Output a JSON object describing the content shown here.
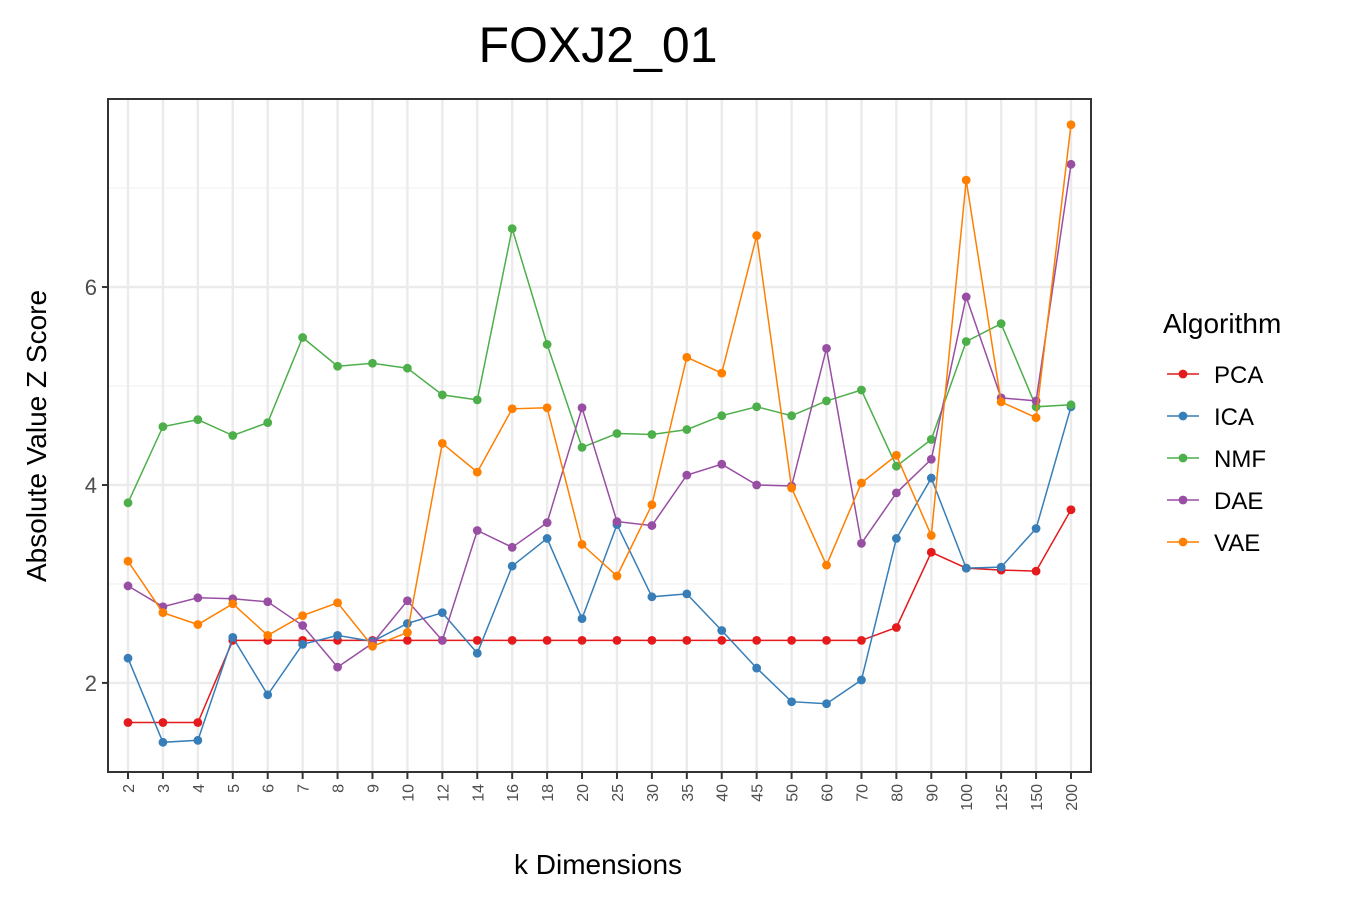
{
  "chart_data": {
    "type": "line",
    "title": "FOXJ2_01",
    "xlabel": "k Dimensions",
    "ylabel": "Absolute Value Z Score",
    "categories": [
      "2",
      "3",
      "4",
      "5",
      "6",
      "7",
      "8",
      "9",
      "10",
      "12",
      "14",
      "16",
      "18",
      "20",
      "25",
      "30",
      "35",
      "40",
      "45",
      "50",
      "60",
      "70",
      "80",
      "90",
      "100",
      "125",
      "150",
      "200"
    ],
    "yticks": [
      2,
      4,
      6
    ],
    "ylim": [
      1.1,
      7.9
    ],
    "grid": true,
    "legend": {
      "title": "Algorithm",
      "position": "right"
    },
    "series": [
      {
        "name": "PCA",
        "color": "#e41a1c",
        "values": [
          1.6,
          1.6,
          1.6,
          2.43,
          2.43,
          2.43,
          2.43,
          2.43,
          2.43,
          2.43,
          2.43,
          2.43,
          2.43,
          2.43,
          2.43,
          2.43,
          2.43,
          2.43,
          2.43,
          2.43,
          2.43,
          2.43,
          2.56,
          3.32,
          3.16,
          3.14,
          3.13,
          3.75
        ]
      },
      {
        "name": "ICA",
        "color": "#377eb8",
        "values": [
          2.25,
          1.4,
          1.42,
          2.46,
          1.88,
          2.39,
          2.48,
          2.42,
          2.6,
          2.71,
          2.3,
          3.18,
          3.46,
          2.65,
          3.6,
          2.87,
          2.9,
          2.53,
          2.15,
          1.81,
          1.79,
          2.03,
          3.46,
          4.07,
          3.16,
          3.17,
          3.56,
          4.79
        ]
      },
      {
        "name": "NMF",
        "color": "#4daf4a",
        "values": [
          3.82,
          4.59,
          4.66,
          4.5,
          4.63,
          5.49,
          5.2,
          5.23,
          5.18,
          4.91,
          4.86,
          6.59,
          5.42,
          4.38,
          4.52,
          4.51,
          4.56,
          4.7,
          4.79,
          4.7,
          4.85,
          4.96,
          4.19,
          4.46,
          5.45,
          5.63,
          4.79,
          4.81
        ]
      },
      {
        "name": "DAE",
        "color": "#984ea3",
        "values": [
          2.98,
          2.77,
          2.86,
          2.85,
          2.82,
          2.58,
          2.16,
          2.4,
          2.83,
          2.43,
          3.54,
          3.37,
          3.62,
          4.78,
          3.63,
          3.59,
          4.1,
          4.21,
          4.0,
          3.99,
          5.38,
          3.41,
          3.92,
          4.26,
          5.9,
          4.88,
          4.85,
          7.24
        ]
      },
      {
        "name": "VAE",
        "color": "#ff7f00",
        "values": [
          3.23,
          2.71,
          2.59,
          2.8,
          2.48,
          2.68,
          2.81,
          2.37,
          2.51,
          4.42,
          4.13,
          4.77,
          4.78,
          3.4,
          3.08,
          3.8,
          5.29,
          5.13,
          6.52,
          3.97,
          3.19,
          4.02,
          4.3,
          3.49,
          7.08,
          4.84,
          4.68,
          7.64
        ]
      }
    ]
  }
}
